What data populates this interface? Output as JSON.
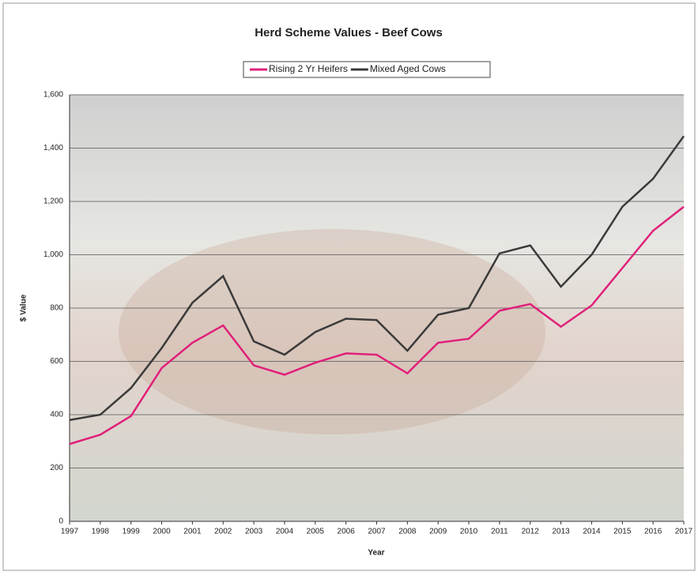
{
  "chart_data": {
    "type": "line",
    "title": "Herd Scheme Values - Beef Cows",
    "x_label": "Year",
    "y_label": "$ Value",
    "categories": [
      "1997",
      "1998",
      "1999",
      "2000",
      "2001",
      "2002",
      "2003",
      "2004",
      "2005",
      "2006",
      "2007",
      "2008",
      "2009",
      "2010",
      "2011",
      "2012",
      "2013",
      "2014",
      "2015",
      "2016",
      "2017"
    ],
    "series": [
      {
        "name": "Rising 2 Yr Heifers",
        "color": "#e0207a",
        "values": [
          290,
          325,
          395,
          575,
          670,
          735,
          585,
          550,
          595,
          630,
          625,
          555,
          670,
          685,
          790,
          815,
          730,
          810,
          950,
          1090,
          1180
        ]
      },
      {
        "name": "Mixed Aged Cows",
        "color": "#3a3a3a",
        "values": [
          380,
          400,
          500,
          650,
          820,
          920,
          675,
          625,
          710,
          760,
          755,
          640,
          775,
          800,
          1005,
          1035,
          880,
          1000,
          1180,
          1285,
          1445
        ]
      }
    ],
    "ylim": [
      0,
      1600
    ],
    "yticks": [
      0,
      200,
      400,
      600,
      800,
      {
        "value": 1000,
        "label": "1,000"
      },
      {
        "value": 1200,
        "label": "1,200"
      },
      {
        "value": 1400,
        "label": "1,400"
      },
      {
        "value": 1600,
        "label": "1,600"
      }
    ],
    "grid": true,
    "legend": "top"
  }
}
